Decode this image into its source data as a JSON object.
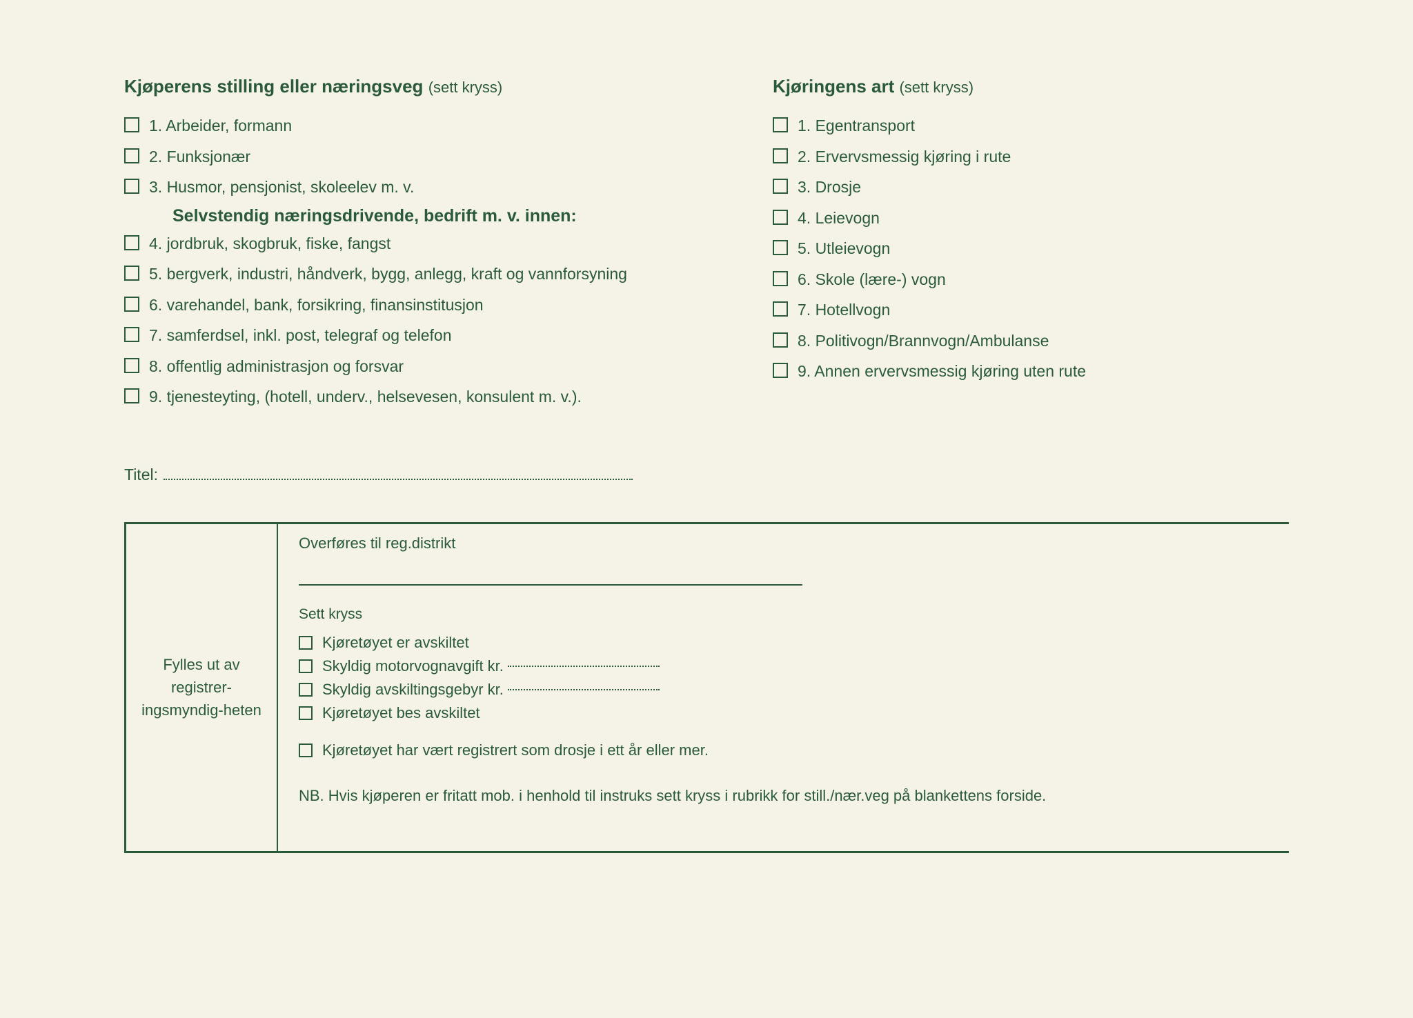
{
  "text_color": "#2a5a3a",
  "background_color": "#f5f3e8",
  "left_section": {
    "title_bold": "Kjøperens stilling eller næringsveg",
    "title_light": "(sett kryss)",
    "items_top": [
      "1. Arbeider, formann",
      "2. Funksjonær",
      "3. Husmor, pensjonist, skoleelev m. v."
    ],
    "subheading": "Selvstendig næringsdrivende, bedrift m. v. innen:",
    "items_bottom": [
      "4. jordbruk, skogbruk, fiske, fangst",
      "5. bergverk, industri, håndverk, bygg, anlegg, kraft og vannforsyning",
      "6. varehandel, bank, forsikring, finansinstitusjon",
      "7. samferdsel, inkl. post, telegraf og telefon",
      "8. offentlig administrasjon og forsvar",
      "9. tjenesteyting, (hotell, underv., helsevesen, konsulent m. v.)."
    ]
  },
  "right_section": {
    "title_bold": "Kjøringens art",
    "title_light": "(sett kryss)",
    "items": [
      "1. Egentransport",
      "2. Ervervsmessig kjøring i rute",
      "3. Drosje",
      "4. Leievogn",
      "5. Utleievogn",
      "6. Skole (lære-) vogn",
      "7. Hotellvogn",
      "8. Politivogn/Brannvogn/Ambulanse",
      "9. Annen ervervsmessig kjøring uten rute"
    ]
  },
  "title_label": "Titel:",
  "bottom_box": {
    "left_label": "Fylles ut av registrer-ingsmyndig-heten",
    "transfer_label": "Overføres til reg.distrikt",
    "sett_kryss": "Sett kryss",
    "checks": [
      "Kjøretøyet er avskiltet",
      "Skyldig motorvognavgift kr.",
      "Skyldig avskiltingsgebyr kr.",
      "Kjøretøyet bes avskiltet"
    ],
    "check_last": "Kjøretøyet har vært registrert som drosje i ett år eller mer.",
    "nb": "NB. Hvis kjøperen er fritatt mob. i henhold til instruks sett kryss i rubrikk for still./nær.veg på blankettens forside."
  }
}
